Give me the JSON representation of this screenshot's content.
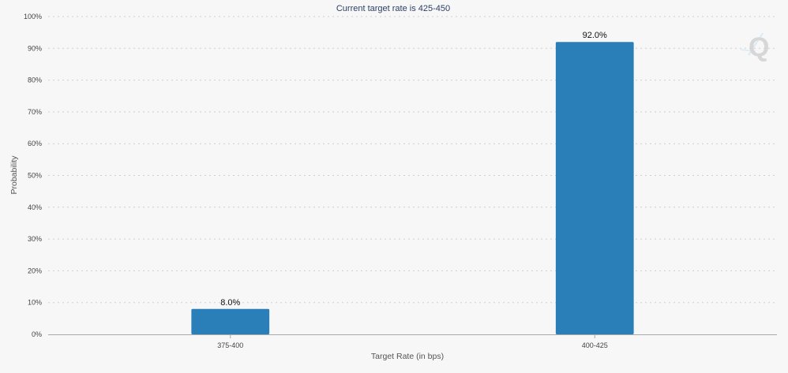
{
  "chart_data": {
    "type": "bar",
    "title": "Current target rate is 425-450",
    "xlabel": "Target Rate (in bps)",
    "ylabel": "Probability",
    "categories": [
      "375-400",
      "400-425"
    ],
    "values": [
      8.0,
      92.0
    ],
    "data_labels": [
      "8.0%",
      "92.0%"
    ],
    "y_ticks": [
      0,
      10,
      20,
      30,
      40,
      50,
      60,
      70,
      80,
      90,
      100
    ],
    "y_tick_labels": [
      "0%",
      "10%",
      "20%",
      "30%",
      "40%",
      "50%",
      "60%",
      "70%",
      "80%",
      "90%",
      "100%"
    ],
    "ylim": [
      0,
      100
    ],
    "grid": true,
    "legend": "none",
    "bar_color": "#2b7fb9",
    "logo_icon": "q-watermark-icon"
  }
}
